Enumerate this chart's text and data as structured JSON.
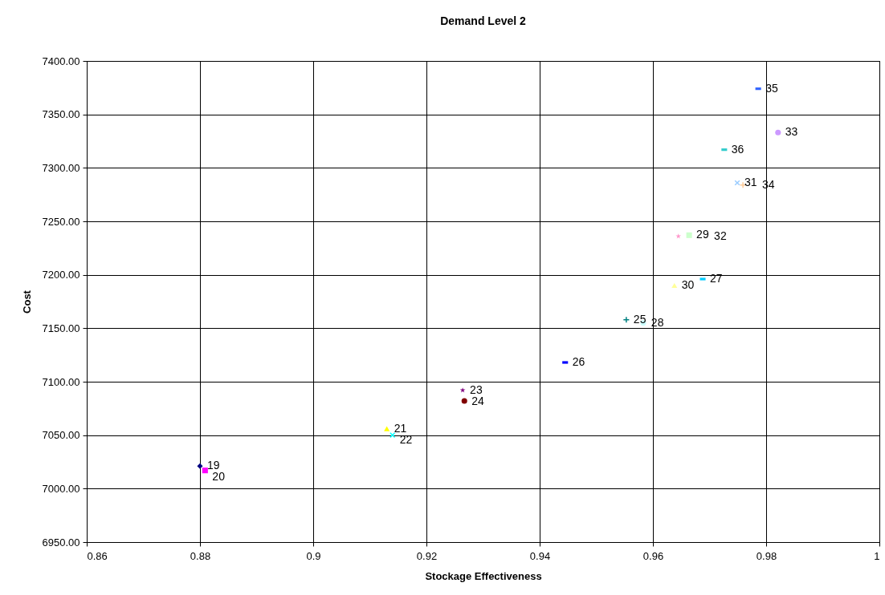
{
  "chart_data": {
    "type": "scatter",
    "title": "Demand Level 2",
    "xlabel": "Stockage Effectiveness",
    "ylabel": "Cost",
    "xlim": [
      0.86,
      1
    ],
    "xticks": [
      0.86,
      0.88,
      0.9,
      0.92,
      0.94,
      0.96,
      0.98,
      1
    ],
    "ylim": [
      6950,
      7400
    ],
    "yticks": [
      {
        "value": 6950,
        "label": "6950.00"
      },
      {
        "value": 7000,
        "label": "7000.00"
      },
      {
        "value": 7050,
        "label": "7050.00"
      },
      {
        "value": 7100,
        "label": "7100.00"
      },
      {
        "value": 7150,
        "label": "7150.00"
      },
      {
        "value": 7200,
        "label": "7200.00"
      },
      {
        "value": 7250,
        "label": "7250.00"
      },
      {
        "value": 7300,
        "label": "7300.00"
      },
      {
        "value": 7350,
        "label": "7350.00"
      },
      {
        "value": 7400,
        "label": "7400.00"
      }
    ],
    "grid": true,
    "series": [
      {
        "name": "19",
        "color": "#000080",
        "marker": "diamond",
        "x": [
          0.88
        ],
        "values": [
          7021
        ]
      },
      {
        "name": "20",
        "color": "#ff00ff",
        "marker": "square",
        "x": [
          0.8809
        ],
        "values": [
          7017
        ]
      },
      {
        "name": "21",
        "color": "#ffff00",
        "marker": "triangle",
        "x": [
          0.913
        ],
        "values": [
          7056
        ]
      },
      {
        "name": "22",
        "color": "#00ffff",
        "marker": "x",
        "x": [
          0.914
        ],
        "values": [
          7050
        ]
      },
      {
        "name": "23",
        "color": "#800080",
        "marker": "star",
        "x": [
          0.9264
        ],
        "values": [
          7092
        ]
      },
      {
        "name": "24",
        "color": "#800000",
        "marker": "circle",
        "x": [
          0.9267
        ],
        "values": [
          7082
        ]
      },
      {
        "name": "25",
        "color": "#008080",
        "marker": "cross",
        "x": [
          0.9553
        ],
        "values": [
          7158
        ]
      },
      {
        "name": "26",
        "color": "#0000ff",
        "x": [
          0.9445
        ],
        "values": [
          7118
        ]
      },
      {
        "name": "27",
        "color": "#00ccff",
        "x": [
          0.9688
        ],
        "values": [
          7196
        ]
      },
      {
        "name": "28",
        "color": "#ccffff",
        "marker": "circle",
        "x": [
          0.9583
        ],
        "values": [
          7155
        ]
      },
      {
        "name": "29",
        "color": "#ccffcc",
        "marker": "square",
        "x": [
          0.9664
        ],
        "values": [
          7237
        ]
      },
      {
        "name": "30",
        "color": "#ffff99",
        "marker": "triangle",
        "x": [
          0.9638
        ],
        "values": [
          7190
        ]
      },
      {
        "name": "31",
        "color": "#99ccff",
        "marker": "x",
        "x": [
          0.9749
        ],
        "values": [
          7286
        ]
      },
      {
        "name": "32",
        "color": "#ff99cc",
        "marker": "star",
        "x": [
          0.9645
        ],
        "values": [
          7236
        ]
      },
      {
        "name": "33",
        "color": "#cc99ff",
        "marker": "circle",
        "x": [
          0.9821
        ],
        "values": [
          7333
        ]
      },
      {
        "name": "34",
        "color": "#ffcc99",
        "marker": "cross",
        "x": [
          0.9759
        ],
        "values": [
          7284
        ]
      },
      {
        "name": "35",
        "color": "#3366ff",
        "x": [
          0.9786
        ],
        "values": [
          7374
        ]
      },
      {
        "name": "36",
        "color": "#33cccc",
        "x": [
          0.9726
        ],
        "values": [
          7317
        ]
      }
    ]
  }
}
